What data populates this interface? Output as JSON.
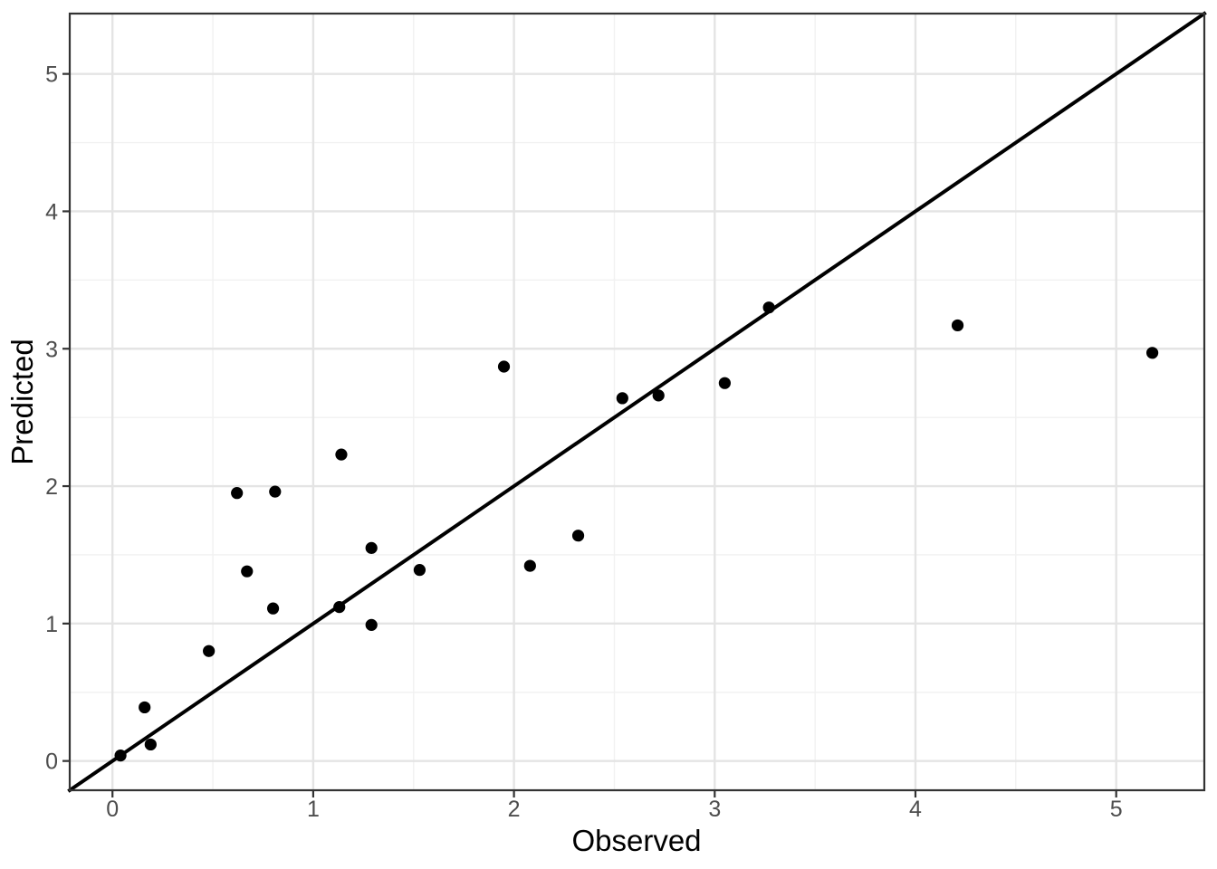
{
  "chart_data": {
    "type": "scatter",
    "title": "",
    "xlabel": "Observed",
    "ylabel": "Predicted",
    "x_ticks": [
      0,
      1,
      2,
      3,
      4,
      5
    ],
    "y_ticks": [
      0,
      1,
      2,
      3,
      4,
      5
    ],
    "xlim": [
      -0.213,
      5.439
    ],
    "ylim": [
      -0.213,
      5.439
    ],
    "grid": {
      "major": true,
      "minor": true,
      "minor_step": 0.5,
      "major_color": "#E4E4E4",
      "minor_color": "#F1F1F1"
    },
    "legend": "none",
    "points": [
      [
        0.04,
        0.04
      ],
      [
        0.16,
        0.39
      ],
      [
        0.19,
        0.12
      ],
      [
        0.48,
        0.8
      ],
      [
        0.62,
        1.95
      ],
      [
        0.67,
        1.38
      ],
      [
        0.8,
        1.11
      ],
      [
        0.81,
        1.96
      ],
      [
        1.13,
        1.12
      ],
      [
        1.14,
        2.23
      ],
      [
        1.29,
        0.99
      ],
      [
        1.29,
        1.55
      ],
      [
        1.53,
        1.39
      ],
      [
        1.95,
        2.87
      ],
      [
        2.08,
        1.42
      ],
      [
        2.32,
        1.64
      ],
      [
        2.54,
        2.64
      ],
      [
        2.72,
        2.66
      ],
      [
        3.05,
        2.75
      ],
      [
        3.27,
        3.3
      ],
      [
        4.21,
        3.17
      ],
      [
        5.18,
        2.97
      ]
    ],
    "reference_line": {
      "type": "identity",
      "equation": "y = x",
      "color": "#000000"
    },
    "point_color": "#000000",
    "axis_text_color": "#4D4D4D",
    "axis_title_color": "#000000",
    "panel_border_color": "#333333",
    "panel_background": "#FFFFFF"
  }
}
